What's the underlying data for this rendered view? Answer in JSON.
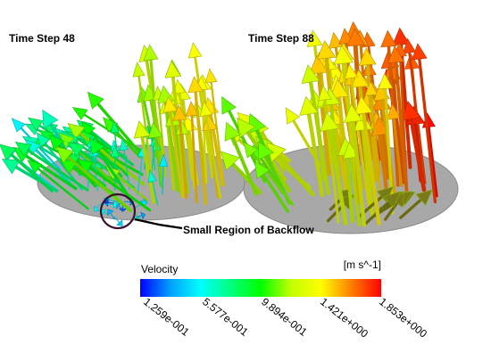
{
  "panels": [
    {
      "title": "Time Step 48"
    },
    {
      "title": "Time Step 88"
    }
  ],
  "annotation": {
    "label": "Small Region of Backflow"
  },
  "legend": {
    "title": "Velocity",
    "units": "[m s^-1]",
    "min": 0.1259,
    "max": 1.853,
    "ticks": [
      "1.259e-001",
      "5.577e-001",
      "9.894e-001",
      "1.421e+000",
      "1.853e+000"
    ],
    "colormap": [
      "#0000ff",
      "#00a0ff",
      "#00ffff",
      "#00ff80",
      "#00ff00",
      "#c0ff00",
      "#ffff00",
      "#ff8000",
      "#ff0000"
    ]
  },
  "colors": {
    "disk_fill": "#a8a8a8",
    "disk_edge": "#8a8a8a",
    "highlight_circle": "#3a1030",
    "leader_line": "#000000"
  }
}
